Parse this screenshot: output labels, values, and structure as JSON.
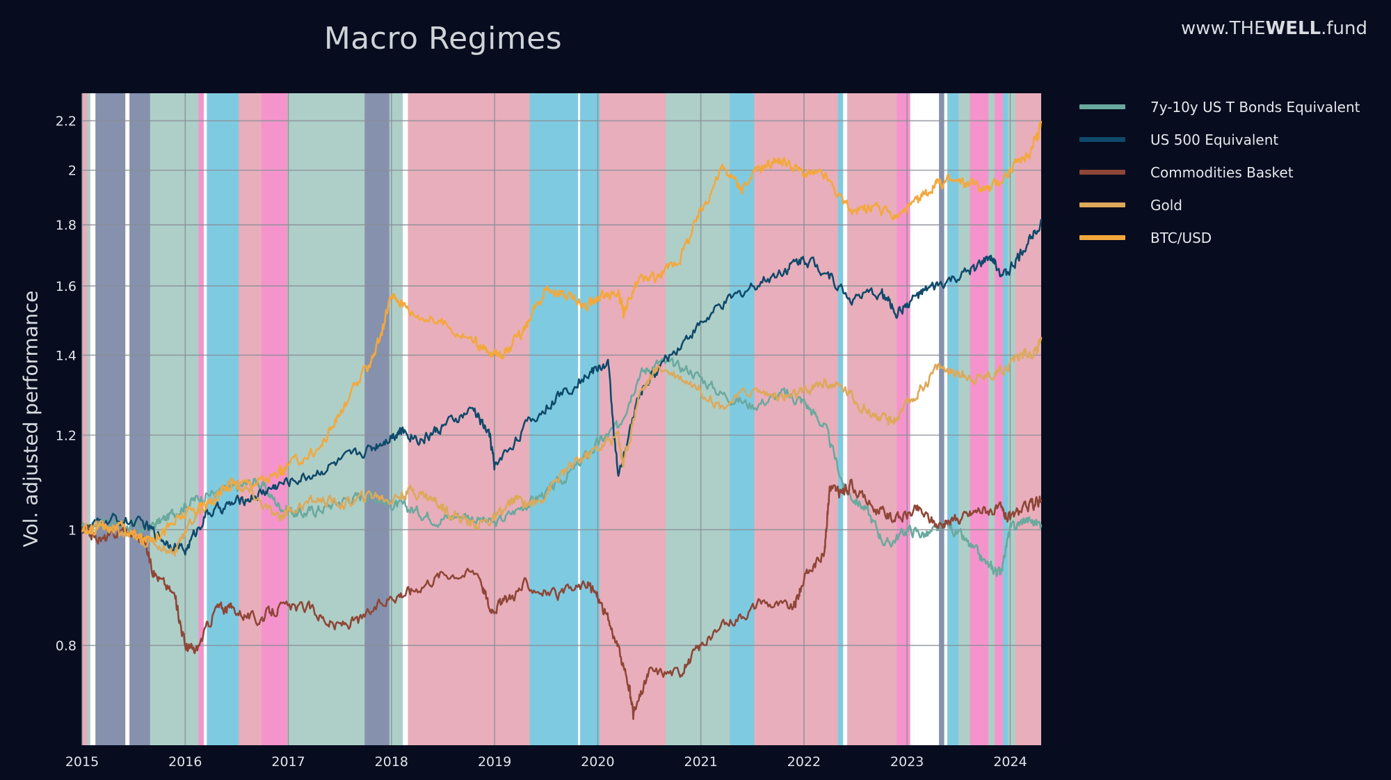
{
  "chart_data": {
    "type": "line",
    "title": "Macro Regimes",
    "ylabel": "Vol. adjusted performance",
    "xlabel": "",
    "y_scale": "log",
    "xlim": [
      2015.0,
      2024.3
    ],
    "ylim": [
      0.66,
      2.32
    ],
    "grid": true,
    "legend_position": "right",
    "x_ticks": [
      2015,
      2016,
      2017,
      2018,
      2019,
      2020,
      2021,
      2022,
      2023,
      2024
    ],
    "x_tick_labels": [
      "2015",
      "2016",
      "2017",
      "2018",
      "2019",
      "2020",
      "2021",
      "2022",
      "2023",
      "2024"
    ],
    "y_ticks": [
      0.8,
      1,
      1.2,
      1.4,
      1.6,
      1.8,
      2,
      2.2
    ],
    "y_tick_labels": [
      "0.8",
      "1",
      "1.2",
      "1.4",
      "1.6",
      "1.8",
      "2",
      "2.2"
    ],
    "regime_colors": {
      "slate": "#8591ad",
      "sage": "#aecfc8",
      "sky": "#7ecbe1",
      "rose": "#e9aebb",
      "magenta": "#f594cc",
      "white": "#ffffff"
    },
    "regimes": [
      {
        "start": 2015.0,
        "end": 2015.05,
        "regime": "rose"
      },
      {
        "start": 2015.05,
        "end": 2015.08,
        "regime": "sage"
      },
      {
        "start": 2015.08,
        "end": 2015.13,
        "regime": "white"
      },
      {
        "start": 2015.13,
        "end": 2015.42,
        "regime": "slate"
      },
      {
        "start": 2015.42,
        "end": 2015.46,
        "regime": "white"
      },
      {
        "start": 2015.46,
        "end": 2015.66,
        "regime": "slate"
      },
      {
        "start": 2015.66,
        "end": 2016.13,
        "regime": "sage"
      },
      {
        "start": 2016.13,
        "end": 2016.18,
        "regime": "magenta"
      },
      {
        "start": 2016.18,
        "end": 2016.21,
        "regime": "white"
      },
      {
        "start": 2016.21,
        "end": 2016.52,
        "regime": "sky"
      },
      {
        "start": 2016.52,
        "end": 2016.74,
        "regime": "rose"
      },
      {
        "start": 2016.74,
        "end": 2016.99,
        "regime": "magenta"
      },
      {
        "start": 2016.99,
        "end": 2017.74,
        "regime": "sage"
      },
      {
        "start": 2017.74,
        "end": 2017.98,
        "regime": "slate"
      },
      {
        "start": 2017.98,
        "end": 2018.11,
        "regime": "sage"
      },
      {
        "start": 2018.11,
        "end": 2018.16,
        "regime": "white"
      },
      {
        "start": 2018.16,
        "end": 2019.34,
        "regime": "rose"
      },
      {
        "start": 2019.34,
        "end": 2019.81,
        "regime": "sky"
      },
      {
        "start": 2019.81,
        "end": 2019.83,
        "regime": "white"
      },
      {
        "start": 2019.83,
        "end": 2020.02,
        "regime": "sky"
      },
      {
        "start": 2020.02,
        "end": 2020.66,
        "regime": "rose"
      },
      {
        "start": 2020.66,
        "end": 2021.28,
        "regime": "sage"
      },
      {
        "start": 2021.28,
        "end": 2021.52,
        "regime": "sky"
      },
      {
        "start": 2021.52,
        "end": 2022.33,
        "regime": "rose"
      },
      {
        "start": 2022.33,
        "end": 2022.38,
        "regime": "sky"
      },
      {
        "start": 2022.38,
        "end": 2022.42,
        "regime": "white"
      },
      {
        "start": 2022.42,
        "end": 2022.9,
        "regime": "rose"
      },
      {
        "start": 2022.9,
        "end": 2023.03,
        "regime": "magenta"
      },
      {
        "start": 2023.03,
        "end": 2023.06,
        "regime": "white"
      },
      {
        "start": 2023.06,
        "end": 2023.31,
        "regime": "white"
      },
      {
        "start": 2023.31,
        "end": 2023.36,
        "regime": "slate"
      },
      {
        "start": 2023.36,
        "end": 2023.39,
        "regime": "white"
      },
      {
        "start": 2023.39,
        "end": 2023.5,
        "regime": "sky"
      },
      {
        "start": 2023.5,
        "end": 2023.61,
        "regime": "sage"
      },
      {
        "start": 2023.61,
        "end": 2023.79,
        "regime": "magenta"
      },
      {
        "start": 2023.79,
        "end": 2023.85,
        "regime": "sage"
      },
      {
        "start": 2023.85,
        "end": 2023.93,
        "regime": "magenta"
      },
      {
        "start": 2023.93,
        "end": 2023.98,
        "regime": "sky"
      },
      {
        "start": 2023.98,
        "end": 2024.05,
        "regime": "sage"
      },
      {
        "start": 2024.05,
        "end": 2024.3,
        "regime": "rose"
      }
    ],
    "series": [
      {
        "name": "7y-10y US T Bonds Equivalent",
        "color": "#6aa99e",
        "x": [
          2015.0,
          2015.2,
          2015.4,
          2015.6,
          2015.8,
          2016.0,
          2016.2,
          2016.45,
          2016.7,
          2016.9,
          2017.1,
          2017.3,
          2017.55,
          2017.8,
          2018.0,
          2018.2,
          2018.45,
          2018.7,
          2019.0,
          2019.3,
          2019.55,
          2019.8,
          2020.0,
          2020.2,
          2020.4,
          2020.6,
          2020.9,
          2021.2,
          2021.5,
          2021.8,
          2022.0,
          2022.2,
          2022.4,
          2022.6,
          2022.8,
          2023.0,
          2023.2,
          2023.4,
          2023.6,
          2023.8,
          2023.9,
          2024.0,
          2024.15,
          2024.3
        ],
        "y": [
          1.0,
          1.02,
          1.01,
          1.0,
          1.02,
          1.05,
          1.07,
          1.08,
          1.1,
          1.05,
          1.03,
          1.04,
          1.06,
          1.07,
          1.05,
          1.04,
          1.02,
          1.03,
          1.01,
          1.05,
          1.08,
          1.13,
          1.18,
          1.22,
          1.35,
          1.38,
          1.36,
          1.3,
          1.27,
          1.3,
          1.28,
          1.22,
          1.08,
          1.04,
          0.97,
          1.0,
          0.99,
          1.01,
          0.97,
          0.93,
          0.92,
          1.0,
          1.02,
          1.01
        ]
      },
      {
        "name": "US 500 Equivalent",
        "color": "#0f4a6b",
        "x": [
          2015.0,
          2015.3,
          2015.6,
          2015.8,
          2016.0,
          2016.2,
          2016.45,
          2016.7,
          2016.9,
          2017.2,
          2017.5,
          2017.8,
          2018.0,
          2018.1,
          2018.3,
          2018.5,
          2018.8,
          2018.95,
          2019.0,
          2019.3,
          2019.6,
          2019.9,
          2020.1,
          2020.2,
          2020.4,
          2020.6,
          2020.9,
          2021.2,
          2021.5,
          2021.8,
          2022.0,
          2022.2,
          2022.45,
          2022.75,
          2022.9,
          2023.1,
          2023.3,
          2023.6,
          2023.8,
          2023.95,
          2024.1,
          2024.3
        ],
        "y": [
          1.0,
          1.02,
          1.01,
          0.98,
          0.96,
          1.03,
          1.05,
          1.07,
          1.09,
          1.11,
          1.14,
          1.17,
          1.2,
          1.21,
          1.19,
          1.22,
          1.26,
          1.2,
          1.13,
          1.22,
          1.29,
          1.35,
          1.38,
          1.1,
          1.3,
          1.37,
          1.46,
          1.54,
          1.6,
          1.65,
          1.69,
          1.65,
          1.56,
          1.58,
          1.52,
          1.57,
          1.6,
          1.64,
          1.69,
          1.63,
          1.7,
          1.82
        ]
      },
      {
        "name": "Commodities Basket",
        "color": "#8e4637",
        "x": [
          2015.0,
          2015.2,
          2015.4,
          2015.6,
          2015.7,
          2015.9,
          2016.0,
          2016.1,
          2016.3,
          2016.45,
          2016.7,
          2016.9,
          2017.2,
          2017.45,
          2017.7,
          2018.0,
          2018.2,
          2018.5,
          2018.85,
          2018.95,
          2019.1,
          2019.3,
          2019.6,
          2019.9,
          2020.0,
          2020.15,
          2020.3,
          2020.35,
          2020.5,
          2020.8,
          2021.0,
          2021.3,
          2021.6,
          2021.9,
          2022.0,
          2022.2,
          2022.25,
          2022.35,
          2022.45,
          2022.7,
          2022.9,
          2023.1,
          2023.3,
          2023.5,
          2023.7,
          2023.9,
          2024.0,
          2024.2,
          2024.3
        ],
        "y": [
          1.0,
          0.98,
          1.0,
          0.98,
          0.92,
          0.88,
          0.8,
          0.79,
          0.86,
          0.86,
          0.84,
          0.86,
          0.86,
          0.83,
          0.84,
          0.88,
          0.89,
          0.92,
          0.92,
          0.86,
          0.87,
          0.9,
          0.88,
          0.9,
          0.88,
          0.82,
          0.74,
          0.7,
          0.76,
          0.76,
          0.8,
          0.84,
          0.87,
          0.86,
          0.91,
          0.96,
          1.09,
          1.07,
          1.09,
          1.04,
          1.02,
          1.04,
          1.01,
          1.02,
          1.04,
          1.04,
          1.02,
          1.05,
          1.06
        ]
      },
      {
        "name": "Gold",
        "color": "#dda95a",
        "x": [
          2015.0,
          2015.2,
          2015.4,
          2015.6,
          2015.9,
          2016.0,
          2016.2,
          2016.45,
          2016.65,
          2016.9,
          2017.0,
          2017.3,
          2017.55,
          2017.8,
          2018.0,
          2018.2,
          2018.4,
          2018.6,
          2018.8,
          2019.0,
          2019.2,
          2019.4,
          2019.6,
          2019.8,
          2020.0,
          2020.2,
          2020.25,
          2020.4,
          2020.6,
          2020.9,
          2021.2,
          2021.5,
          2021.8,
          2022.0,
          2022.2,
          2022.4,
          2022.6,
          2022.8,
          2022.9,
          2023.1,
          2023.3,
          2023.5,
          2023.7,
          2023.9,
          2024.1,
          2024.25,
          2024.3
        ],
        "y": [
          1.0,
          1.01,
          0.99,
          0.98,
          0.96,
          1.0,
          1.05,
          1.1,
          1.07,
          1.02,
          1.04,
          1.06,
          1.05,
          1.07,
          1.06,
          1.08,
          1.06,
          1.03,
          1.01,
          1.02,
          1.06,
          1.05,
          1.1,
          1.14,
          1.17,
          1.2,
          1.13,
          1.3,
          1.37,
          1.33,
          1.27,
          1.31,
          1.29,
          1.3,
          1.33,
          1.31,
          1.26,
          1.23,
          1.24,
          1.3,
          1.37,
          1.35,
          1.34,
          1.36,
          1.4,
          1.41,
          1.45
        ]
      },
      {
        "name": "BTC/USD",
        "color": "#f3a83c",
        "x": [
          2015.0,
          2015.2,
          2015.4,
          2015.6,
          2015.8,
          2016.0,
          2016.2,
          2016.45,
          2016.7,
          2016.9,
          2017.0,
          2017.3,
          2017.5,
          2017.75,
          2017.9,
          2018.0,
          2018.2,
          2018.5,
          2018.8,
          2018.95,
          2019.1,
          2019.3,
          2019.5,
          2019.7,
          2019.9,
          2020.0,
          2020.2,
          2020.25,
          2020.4,
          2020.6,
          2020.8,
          2021.0,
          2021.2,
          2021.4,
          2021.6,
          2021.8,
          2022.0,
          2022.2,
          2022.45,
          2022.65,
          2022.9,
          2023.1,
          2023.25,
          2023.4,
          2023.6,
          2023.8,
          2024.0,
          2024.15,
          2024.25,
          2024.3
        ],
        "y": [
          0.99,
          1.01,
          1.0,
          0.98,
          1.0,
          1.03,
          1.05,
          1.09,
          1.1,
          1.11,
          1.13,
          1.17,
          1.25,
          1.36,
          1.45,
          1.58,
          1.52,
          1.49,
          1.44,
          1.4,
          1.41,
          1.47,
          1.6,
          1.57,
          1.54,
          1.56,
          1.58,
          1.52,
          1.62,
          1.63,
          1.69,
          1.85,
          2.01,
          1.93,
          2.02,
          2.04,
          1.99,
          1.98,
          1.85,
          1.86,
          1.83,
          1.88,
          1.94,
          1.96,
          1.95,
          1.93,
          2.0,
          2.05,
          2.12,
          2.2
        ]
      }
    ]
  },
  "watermark": {
    "prefix": "www.THE",
    "bold": "WELL",
    "suffix": ".fund"
  }
}
